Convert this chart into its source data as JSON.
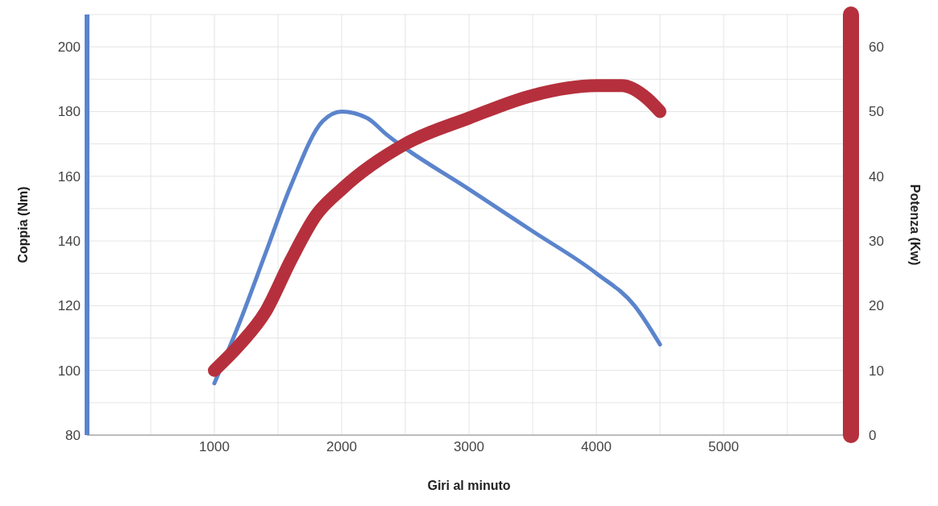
{
  "chart_data": {
    "type": "line",
    "xlabel": "Giri al minuto",
    "ylabel": "Coppia (Nm)",
    "y2label": "Potenza (Kw)",
    "xlim": [
      0,
      6000
    ],
    "xticks": [
      {
        "value": 500,
        "label": null
      },
      1000,
      {
        "value": 1500,
        "label": null
      },
      2000,
      {
        "value": 2500,
        "label": null
      },
      3000,
      {
        "value": 3500,
        "label": null
      },
      4000,
      {
        "value": 4500,
        "label": null
      },
      5000,
      {
        "value": 5500,
        "label": null
      }
    ],
    "ylim": [
      80,
      210
    ],
    "yticks": [
      80,
      {
        "value": 90,
        "label": null
      },
      100,
      {
        "value": 110,
        "label": null
      },
      120,
      {
        "value": 130,
        "label": null
      },
      140,
      {
        "value": 150,
        "label": null
      },
      160,
      {
        "value": 170,
        "label": null
      },
      180,
      {
        "value": 190,
        "label": null
      },
      200
    ],
    "y2lim": [
      0,
      65
    ],
    "y2ticks": [
      0,
      10,
      20,
      30,
      40,
      50,
      60
    ],
    "grid": true,
    "marker": "none",
    "line_style": "solid",
    "series": [
      {
        "color": "#5b84cc",
        "x": [
          1000,
          1200,
          1400,
          1600,
          1850,
          2000,
          2200,
          2350,
          3000,
          3500,
          4000,
          4300,
          4500
        ],
        "values": [
          96,
          115,
          136,
          157,
          177,
          180,
          178,
          173,
          156,
          143,
          130,
          120,
          108
        ]
      },
      {
        "color": "#b5303c",
        "axis": "y2",
        "x": [
          1000,
          1200,
          1400,
          1600,
          1800,
          2000,
          2500,
          3000,
          3500,
          4000,
          4200,
          4400,
          4500
        ],
        "values": [
          10,
          14,
          19,
          27,
          34,
          38,
          45,
          49,
          52.5,
          54,
          54,
          52,
          50
        ]
      }
    ]
  }
}
